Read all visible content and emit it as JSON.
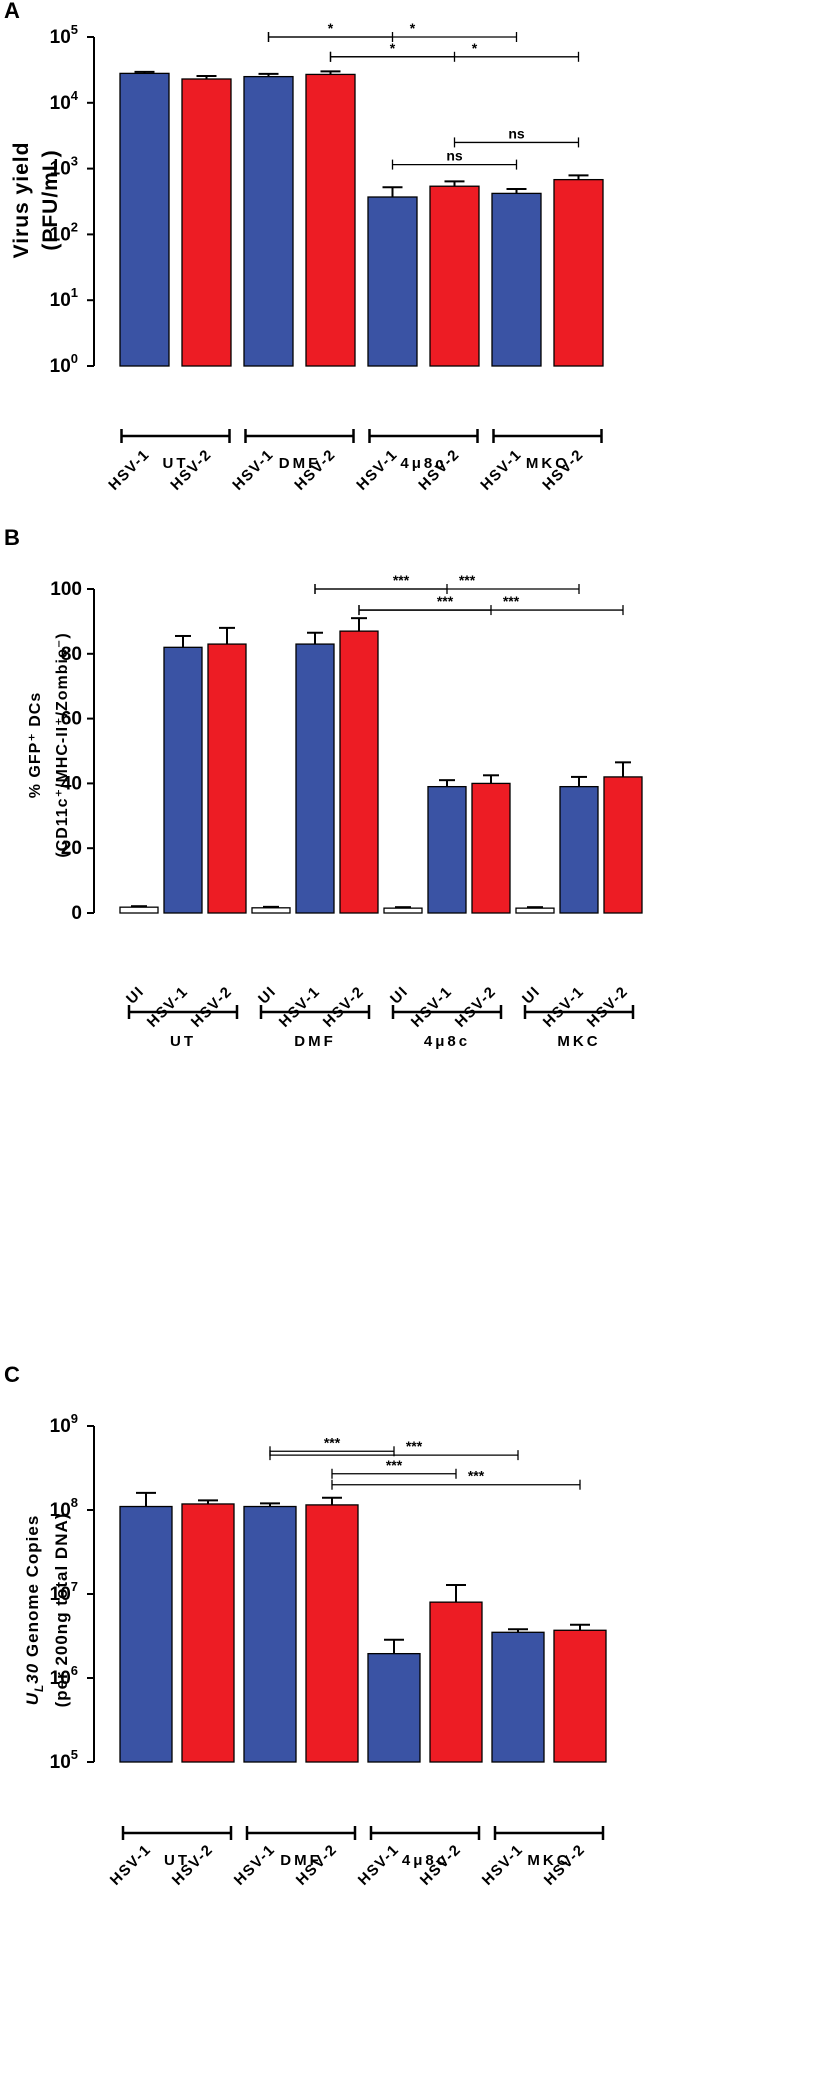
{
  "colors": {
    "hsv1": "#3a53a4",
    "hsv2": "#ed1c24",
    "ui": "#ffffff",
    "axis": "#000000"
  },
  "chart_data": [
    {
      "panel": "A",
      "type": "bar",
      "scale": "log",
      "ylabel_lines": [
        "Virus yield",
        "(PFU/mL)"
      ],
      "ylim": [
        1,
        100000
      ],
      "yticks": [
        {
          "base": "10",
          "exp": "0",
          "value": 1
        },
        {
          "base": "10",
          "exp": "1",
          "value": 10
        },
        {
          "base": "10",
          "exp": "2",
          "value": 100
        },
        {
          "base": "10",
          "exp": "3",
          "value": 1000
        },
        {
          "base": "10",
          "exp": "4",
          "value": 10000
        },
        {
          "base": "10",
          "exp": "5",
          "value": 100000
        }
      ],
      "categories": [
        "HSV-1",
        "HSV-2",
        "HSV-1",
        "HSV-2",
        "HSV-1",
        "HSV-2",
        "HSV-1",
        "HSV-2"
      ],
      "series": [
        {
          "name": "HSV-1",
          "color_key": "hsv1"
        },
        {
          "name": "HSV-2",
          "color_key": "hsv2"
        }
      ],
      "bars": [
        {
          "label": "HSV-1",
          "group": "UT",
          "color_key": "hsv1",
          "value": 28000,
          "err": 29500
        },
        {
          "label": "HSV-2",
          "group": "UT",
          "color_key": "hsv2",
          "value": 23000,
          "err": 25500
        },
        {
          "label": "HSV-1",
          "group": "DMF",
          "color_key": "hsv1",
          "value": 25000,
          "err": 27500
        },
        {
          "label": "HSV-2",
          "group": "DMF",
          "color_key": "hsv2",
          "value": 27000,
          "err": 30000
        },
        {
          "label": "HSV-1",
          "group": "4μ8c",
          "color_key": "hsv1",
          "value": 370,
          "err": 520
        },
        {
          "label": "HSV-2",
          "group": "4μ8c",
          "color_key": "hsv2",
          "value": 540,
          "err": 640
        },
        {
          "label": "HSV-1",
          "group": "MKC",
          "color_key": "hsv1",
          "value": 420,
          "err": 490
        },
        {
          "label": "HSV-2",
          "group": "MKC",
          "color_key": "hsv2",
          "value": 680,
          "err": 790
        }
      ],
      "groups": [
        {
          "label": "UT",
          "from": 0,
          "to": 1
        },
        {
          "label": "DMF",
          "from": 2,
          "to": 3
        },
        {
          "label": "4μ8c",
          "from": 4,
          "to": 5
        },
        {
          "label": "MKC",
          "from": 6,
          "to": 7
        }
      ],
      "comparisons": [
        {
          "from": 2,
          "to": 4,
          "label": "*",
          "level": 100000
        },
        {
          "from": 2,
          "to": 6,
          "label": "*",
          "level": 100000
        },
        {
          "from": 3,
          "to": 5,
          "label": "*",
          "level": 50000
        },
        {
          "from": 3,
          "to": 7,
          "label": "*",
          "level": 50000
        },
        {
          "from": 5,
          "to": 7,
          "label": "ns",
          "level": 2500
        },
        {
          "from": 4,
          "to": 6,
          "label": "ns",
          "level": 1150
        }
      ]
    },
    {
      "panel": "B",
      "type": "bar",
      "scale": "linear",
      "ylabel_lines": [
        "% GFP⁺ DCs",
        "(CD11c⁺/MHC-II⁺/Zombie⁻)"
      ],
      "ylim": [
        0,
        100
      ],
      "yticks": [
        {
          "base": "0",
          "value": 0
        },
        {
          "base": "20",
          "value": 20
        },
        {
          "base": "40",
          "value": 40
        },
        {
          "base": "60",
          "value": 60
        },
        {
          "base": "80",
          "value": 80
        },
        {
          "base": "100",
          "value": 100
        }
      ],
      "categories": [
        "UI",
        "HSV-1",
        "HSV-2",
        "UI",
        "HSV-1",
        "HSV-2",
        "UI",
        "HSV-1",
        "HSV-2",
        "UI",
        "HSV-1",
        "HSV-2"
      ],
      "series": [
        {
          "name": "UI",
          "color_key": "ui"
        },
        {
          "name": "HSV-1",
          "color_key": "hsv1"
        },
        {
          "name": "HSV-2",
          "color_key": "hsv2"
        }
      ],
      "bars": [
        {
          "label": "UI",
          "group": "UT",
          "color_key": "ui",
          "value": 1.8,
          "err": 2.1
        },
        {
          "label": "HSV-1",
          "group": "UT",
          "color_key": "hsv1",
          "value": 82,
          "err": 85.5
        },
        {
          "label": "HSV-2",
          "group": "UT",
          "color_key": "hsv2",
          "value": 83,
          "err": 88
        },
        {
          "label": "UI",
          "group": "DMF",
          "color_key": "ui",
          "value": 1.6,
          "err": 1.9
        },
        {
          "label": "HSV-1",
          "group": "DMF",
          "color_key": "hsv1",
          "value": 83,
          "err": 86.5
        },
        {
          "label": "HSV-2",
          "group": "DMF",
          "color_key": "hsv2",
          "value": 87,
          "err": 91
        },
        {
          "label": "UI",
          "group": "4μ8c",
          "color_key": "ui",
          "value": 1.5,
          "err": 1.8
        },
        {
          "label": "HSV-1",
          "group": "4μ8c",
          "color_key": "hsv1",
          "value": 39,
          "err": 41
        },
        {
          "label": "HSV-2",
          "group": "4μ8c",
          "color_key": "hsv2",
          "value": 40,
          "err": 42.5
        },
        {
          "label": "UI",
          "group": "MKC",
          "color_key": "ui",
          "value": 1.5,
          "err": 1.8
        },
        {
          "label": "HSV-1",
          "group": "MKC",
          "color_key": "hsv1",
          "value": 39,
          "err": 42
        },
        {
          "label": "HSV-2",
          "group": "MKC",
          "color_key": "hsv2",
          "value": 42,
          "err": 46.5
        }
      ],
      "groups": [
        {
          "label": "UT",
          "from": 0,
          "to": 2
        },
        {
          "label": "DMF",
          "from": 3,
          "to": 5
        },
        {
          "label": "4μ8c",
          "from": 6,
          "to": 8
        },
        {
          "label": "MKC",
          "from": 9,
          "to": 11
        }
      ],
      "comparisons": [
        {
          "from": 4,
          "to": 7,
          "label": "***",
          "level": 100
        },
        {
          "from": 4,
          "to": 10,
          "label": "***",
          "level": 100
        },
        {
          "from": 5,
          "to": 8,
          "label": "***",
          "level": 93.5
        },
        {
          "from": 5,
          "to": 11,
          "label": "***",
          "level": 93.5
        }
      ]
    },
    {
      "panel": "C",
      "type": "bar",
      "scale": "log",
      "ylabel_lines": [
        "UL30 Genome Copies",
        "(per 200ng total DNA)"
      ],
      "ylabel_rich": [
        {
          "t": "U",
          "italic": true
        },
        {
          "t": "L",
          "italic": true,
          "sub": true
        },
        {
          "t": "30",
          "italic": true
        },
        {
          "t": " Genome Copies"
        }
      ],
      "ylim": [
        100000,
        1000000000
      ],
      "yticks": [
        {
          "base": "10",
          "exp": "5",
          "value": 100000
        },
        {
          "base": "10",
          "exp": "6",
          "value": 1000000
        },
        {
          "base": "10",
          "exp": "7",
          "value": 10000000
        },
        {
          "base": "10",
          "exp": "8",
          "value": 100000000
        },
        {
          "base": "10",
          "exp": "9",
          "value": 1000000000
        }
      ],
      "categories": [
        "HSV-1",
        "HSV-2",
        "HSV-1",
        "HSV-2",
        "HSV-1",
        "HSV-2",
        "HSV-1",
        "HSV-2"
      ],
      "series": [
        {
          "name": "HSV-1",
          "color_key": "hsv1"
        },
        {
          "name": "HSV-2",
          "color_key": "hsv2"
        }
      ],
      "bars": [
        {
          "label": "HSV-1",
          "group": "UT",
          "color_key": "hsv1",
          "value": 110000000,
          "err": 160000000
        },
        {
          "label": "HSV-2",
          "group": "UT",
          "color_key": "hsv2",
          "value": 118000000,
          "err": 130000000
        },
        {
          "label": "HSV-1",
          "group": "DMF",
          "color_key": "hsv1",
          "value": 110000000,
          "err": 120000000
        },
        {
          "label": "HSV-2",
          "group": "DMF",
          "color_key": "hsv2",
          "value": 115000000,
          "err": 140000000
        },
        {
          "label": "HSV-1",
          "group": "4μ8c",
          "color_key": "hsv1",
          "value": 1950000,
          "err": 2850000
        },
        {
          "label": "HSV-2",
          "group": "4μ8c",
          "color_key": "hsv2",
          "value": 8000000,
          "err": 12800000
        },
        {
          "label": "HSV-1",
          "group": "MKC",
          "color_key": "hsv1",
          "value": 3500000,
          "err": 3800000
        },
        {
          "label": "HSV-2",
          "group": "MKC",
          "color_key": "hsv2",
          "value": 3700000,
          "err": 4300000
        }
      ],
      "groups": [
        {
          "label": "UT",
          "from": 0,
          "to": 1
        },
        {
          "label": "DMF",
          "from": 2,
          "to": 3
        },
        {
          "label": "4μ8c",
          "from": 4,
          "to": 5
        },
        {
          "label": "MKC",
          "from": 6,
          "to": 7
        }
      ],
      "comparisons": [
        {
          "from": 2,
          "to": 4,
          "label": "***",
          "level": 500000000
        },
        {
          "from": 2,
          "to": 6,
          "label": "***",
          "level": 450000000
        },
        {
          "from": 3,
          "to": 5,
          "label": "***",
          "level": 270000000
        },
        {
          "from": 3,
          "to": 7,
          "label": "***",
          "level": 200000000
        }
      ]
    }
  ]
}
